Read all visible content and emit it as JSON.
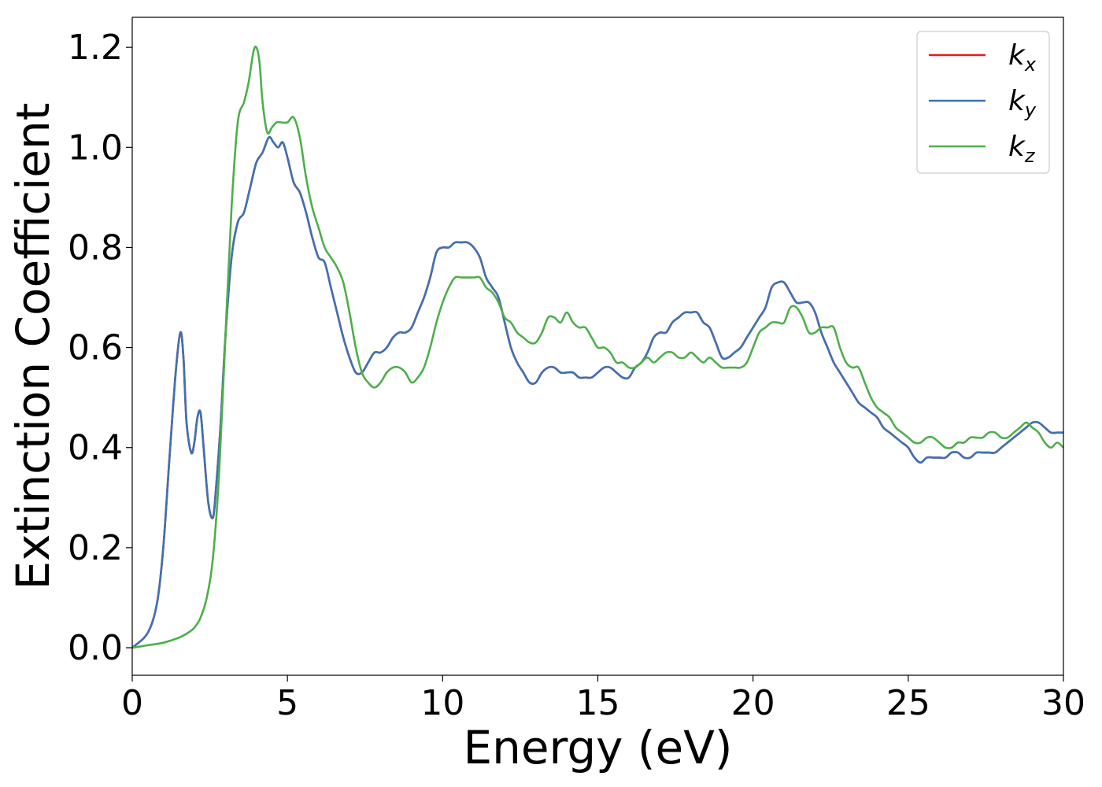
{
  "chart_data": {
    "type": "line",
    "xlabel": "Energy (eV)",
    "ylabel": "Extinction Coefficient",
    "xlim": [
      0,
      30
    ],
    "ylim": [
      -0.055,
      1.26
    ],
    "xticks": [
      0,
      5,
      10,
      15,
      20,
      25,
      30
    ],
    "xtick_labels": [
      "0",
      "5",
      "10",
      "15",
      "20",
      "25",
      "30"
    ],
    "yticks": [
      0.0,
      0.2,
      0.4,
      0.6,
      0.8,
      1.0,
      1.2
    ],
    "ytick_labels": [
      "0.0",
      "0.2",
      "0.4",
      "0.6",
      "0.8",
      "1.0",
      "1.2"
    ],
    "grid": false,
    "legend_position": "top-right",
    "series": [
      {
        "name": "k_x",
        "label_base": "k",
        "label_sub": "x",
        "color": "#e41a1c",
        "x": [
          0,
          0.5,
          0.8,
          1.0,
          1.2,
          1.4,
          1.55,
          1.65,
          1.75,
          1.9,
          2.0,
          2.1,
          2.2,
          2.3,
          2.45,
          2.6,
          2.7,
          2.85,
          3.0,
          3.2,
          3.4,
          3.6,
          3.8,
          4.0,
          4.2,
          4.4,
          4.55,
          4.7,
          4.85,
          5.0,
          5.2,
          5.4,
          5.6,
          5.8,
          6.0,
          6.2,
          6.4,
          6.6,
          6.8,
          7.0,
          7.2,
          7.4,
          7.6,
          7.8,
          8.0,
          8.2,
          8.4,
          8.6,
          8.8,
          9.0,
          9.2,
          9.4,
          9.6,
          9.8,
          10.0,
          10.2,
          10.4,
          10.6,
          10.8,
          11.0,
          11.2,
          11.4,
          11.6,
          11.8,
          12.0,
          12.2,
          12.4,
          12.6,
          12.8,
          13.0,
          13.2,
          13.4,
          13.6,
          13.8,
          14.0,
          14.2,
          14.4,
          14.6,
          14.8,
          15.0,
          15.2,
          15.4,
          15.6,
          15.8,
          16.0,
          16.2,
          16.4,
          16.6,
          16.8,
          17.0,
          17.2,
          17.4,
          17.6,
          17.8,
          18.0,
          18.2,
          18.4,
          18.6,
          18.8,
          19.0,
          19.2,
          19.4,
          19.6,
          19.8,
          20.0,
          20.2,
          20.4,
          20.6,
          20.8,
          21.0,
          21.2,
          21.4,
          21.6,
          21.8,
          22.0,
          22.2,
          22.4,
          22.6,
          22.8,
          23.0,
          23.2,
          23.4,
          23.6,
          23.8,
          24.0,
          24.2,
          24.4,
          24.6,
          24.8,
          25.0,
          25.2,
          25.4,
          25.6,
          25.8,
          26.0,
          26.2,
          26.4,
          26.6,
          26.8,
          27.0,
          27.2,
          27.4,
          27.6,
          27.8,
          28.0,
          28.2,
          28.4,
          28.6,
          28.8,
          29.0,
          29.2,
          29.4,
          29.6,
          29.8,
          30.0
        ],
        "y": [
          0.0,
          0.03,
          0.09,
          0.2,
          0.38,
          0.55,
          0.63,
          0.58,
          0.45,
          0.39,
          0.41,
          0.46,
          0.47,
          0.4,
          0.29,
          0.26,
          0.32,
          0.45,
          0.62,
          0.78,
          0.85,
          0.87,
          0.92,
          0.97,
          0.99,
          1.02,
          1.01,
          1.0,
          1.01,
          0.98,
          0.93,
          0.91,
          0.87,
          0.82,
          0.78,
          0.77,
          0.72,
          0.67,
          0.62,
          0.58,
          0.55,
          0.55,
          0.57,
          0.59,
          0.59,
          0.6,
          0.62,
          0.63,
          0.63,
          0.64,
          0.67,
          0.7,
          0.74,
          0.79,
          0.8,
          0.8,
          0.81,
          0.81,
          0.81,
          0.8,
          0.78,
          0.74,
          0.72,
          0.7,
          0.65,
          0.6,
          0.57,
          0.55,
          0.53,
          0.53,
          0.55,
          0.56,
          0.56,
          0.55,
          0.55,
          0.55,
          0.54,
          0.54,
          0.54,
          0.55,
          0.56,
          0.56,
          0.55,
          0.54,
          0.54,
          0.56,
          0.57,
          0.59,
          0.62,
          0.63,
          0.63,
          0.65,
          0.66,
          0.67,
          0.67,
          0.67,
          0.65,
          0.64,
          0.61,
          0.58,
          0.58,
          0.59,
          0.6,
          0.62,
          0.64,
          0.66,
          0.68,
          0.72,
          0.73,
          0.73,
          0.71,
          0.69,
          0.69,
          0.69,
          0.67,
          0.63,
          0.6,
          0.57,
          0.55,
          0.53,
          0.51,
          0.49,
          0.48,
          0.47,
          0.46,
          0.44,
          0.43,
          0.42,
          0.41,
          0.4,
          0.38,
          0.37,
          0.38,
          0.38,
          0.38,
          0.38,
          0.39,
          0.39,
          0.38,
          0.38,
          0.39,
          0.39,
          0.39,
          0.39,
          0.4,
          0.41,
          0.42,
          0.43,
          0.44,
          0.45,
          0.45,
          0.44,
          0.43,
          0.43,
          0.43
        ]
      },
      {
        "name": "k_y",
        "label_base": "k",
        "label_sub": "y",
        "color": "#3d72b4",
        "x": [
          0,
          0.5,
          0.8,
          1.0,
          1.2,
          1.4,
          1.55,
          1.65,
          1.75,
          1.9,
          2.0,
          2.1,
          2.2,
          2.3,
          2.45,
          2.6,
          2.7,
          2.85,
          3.0,
          3.2,
          3.4,
          3.6,
          3.8,
          4.0,
          4.2,
          4.4,
          4.55,
          4.7,
          4.85,
          5.0,
          5.2,
          5.4,
          5.6,
          5.8,
          6.0,
          6.2,
          6.4,
          6.6,
          6.8,
          7.0,
          7.2,
          7.4,
          7.6,
          7.8,
          8.0,
          8.2,
          8.4,
          8.6,
          8.8,
          9.0,
          9.2,
          9.4,
          9.6,
          9.8,
          10.0,
          10.2,
          10.4,
          10.6,
          10.8,
          11.0,
          11.2,
          11.4,
          11.6,
          11.8,
          12.0,
          12.2,
          12.4,
          12.6,
          12.8,
          13.0,
          13.2,
          13.4,
          13.6,
          13.8,
          14.0,
          14.2,
          14.4,
          14.6,
          14.8,
          15.0,
          15.2,
          15.4,
          15.6,
          15.8,
          16.0,
          16.2,
          16.4,
          16.6,
          16.8,
          17.0,
          17.2,
          17.4,
          17.6,
          17.8,
          18.0,
          18.2,
          18.4,
          18.6,
          18.8,
          19.0,
          19.2,
          19.4,
          19.6,
          19.8,
          20.0,
          20.2,
          20.4,
          20.6,
          20.8,
          21.0,
          21.2,
          21.4,
          21.6,
          21.8,
          22.0,
          22.2,
          22.4,
          22.6,
          22.8,
          23.0,
          23.2,
          23.4,
          23.6,
          23.8,
          24.0,
          24.2,
          24.4,
          24.6,
          24.8,
          25.0,
          25.2,
          25.4,
          25.6,
          25.8,
          26.0,
          26.2,
          26.4,
          26.6,
          26.8,
          27.0,
          27.2,
          27.4,
          27.6,
          27.8,
          28.0,
          28.2,
          28.4,
          28.6,
          28.8,
          29.0,
          29.2,
          29.4,
          29.6,
          29.8,
          30.0
        ],
        "y": [
          0.0,
          0.03,
          0.09,
          0.2,
          0.38,
          0.55,
          0.63,
          0.58,
          0.45,
          0.39,
          0.41,
          0.46,
          0.47,
          0.4,
          0.29,
          0.26,
          0.32,
          0.45,
          0.62,
          0.78,
          0.85,
          0.87,
          0.92,
          0.97,
          0.99,
          1.02,
          1.01,
          1.0,
          1.01,
          0.98,
          0.93,
          0.91,
          0.87,
          0.82,
          0.78,
          0.77,
          0.72,
          0.67,
          0.62,
          0.58,
          0.55,
          0.55,
          0.57,
          0.59,
          0.59,
          0.6,
          0.62,
          0.63,
          0.63,
          0.64,
          0.67,
          0.7,
          0.74,
          0.79,
          0.8,
          0.8,
          0.81,
          0.81,
          0.81,
          0.8,
          0.78,
          0.74,
          0.72,
          0.7,
          0.65,
          0.6,
          0.57,
          0.55,
          0.53,
          0.53,
          0.55,
          0.56,
          0.56,
          0.55,
          0.55,
          0.55,
          0.54,
          0.54,
          0.54,
          0.55,
          0.56,
          0.56,
          0.55,
          0.54,
          0.54,
          0.56,
          0.57,
          0.59,
          0.62,
          0.63,
          0.63,
          0.65,
          0.66,
          0.67,
          0.67,
          0.67,
          0.65,
          0.64,
          0.61,
          0.58,
          0.58,
          0.59,
          0.6,
          0.62,
          0.64,
          0.66,
          0.68,
          0.72,
          0.73,
          0.73,
          0.71,
          0.69,
          0.69,
          0.69,
          0.67,
          0.63,
          0.6,
          0.57,
          0.55,
          0.53,
          0.51,
          0.49,
          0.48,
          0.47,
          0.46,
          0.44,
          0.43,
          0.42,
          0.41,
          0.4,
          0.38,
          0.37,
          0.38,
          0.38,
          0.38,
          0.38,
          0.39,
          0.39,
          0.38,
          0.38,
          0.39,
          0.39,
          0.39,
          0.39,
          0.4,
          0.41,
          0.42,
          0.43,
          0.44,
          0.45,
          0.45,
          0.44,
          0.43,
          0.43,
          0.43
        ]
      },
      {
        "name": "k_z",
        "label_base": "k",
        "label_sub": "z",
        "color": "#4daf4a",
        "x": [
          0,
          0.5,
          1.0,
          1.5,
          1.8,
          2.0,
          2.2,
          2.4,
          2.6,
          2.8,
          3.0,
          3.2,
          3.4,
          3.6,
          3.75,
          3.9,
          4.0,
          4.1,
          4.2,
          4.35,
          4.5,
          4.65,
          4.8,
          5.0,
          5.2,
          5.4,
          5.6,
          5.8,
          6.0,
          6.2,
          6.4,
          6.6,
          6.8,
          7.0,
          7.2,
          7.4,
          7.6,
          7.8,
          8.0,
          8.2,
          8.4,
          8.6,
          8.8,
          9.0,
          9.2,
          9.4,
          9.6,
          9.8,
          10.0,
          10.2,
          10.4,
          10.6,
          10.8,
          11.0,
          11.2,
          11.4,
          11.6,
          11.8,
          12.0,
          12.2,
          12.4,
          12.6,
          12.8,
          13.0,
          13.2,
          13.4,
          13.6,
          13.8,
          14.0,
          14.2,
          14.4,
          14.6,
          14.8,
          15.0,
          15.2,
          15.4,
          15.6,
          15.8,
          16.0,
          16.2,
          16.4,
          16.6,
          16.8,
          17.0,
          17.2,
          17.4,
          17.6,
          17.8,
          18.0,
          18.2,
          18.4,
          18.6,
          18.8,
          19.0,
          19.2,
          19.4,
          19.6,
          19.8,
          20.0,
          20.2,
          20.4,
          20.6,
          20.8,
          21.0,
          21.2,
          21.4,
          21.6,
          21.8,
          22.0,
          22.2,
          22.4,
          22.6,
          22.8,
          23.0,
          23.2,
          23.4,
          23.6,
          23.8,
          24.0,
          24.2,
          24.4,
          24.6,
          24.8,
          25.0,
          25.2,
          25.4,
          25.6,
          25.8,
          26.0,
          26.2,
          26.4,
          26.6,
          26.8,
          27.0,
          27.2,
          27.4,
          27.6,
          27.8,
          28.0,
          28.2,
          28.4,
          28.6,
          28.8,
          29.0,
          29.2,
          29.4,
          29.6,
          29.8,
          30.0
        ],
        "y": [
          0.0,
          0.005,
          0.01,
          0.02,
          0.03,
          0.04,
          0.06,
          0.1,
          0.18,
          0.35,
          0.62,
          0.88,
          1.05,
          1.09,
          1.13,
          1.19,
          1.2,
          1.17,
          1.09,
          1.03,
          1.04,
          1.05,
          1.05,
          1.05,
          1.06,
          1.02,
          0.94,
          0.88,
          0.84,
          0.8,
          0.78,
          0.76,
          0.73,
          0.67,
          0.6,
          0.55,
          0.53,
          0.52,
          0.53,
          0.55,
          0.56,
          0.56,
          0.55,
          0.53,
          0.54,
          0.56,
          0.6,
          0.65,
          0.69,
          0.72,
          0.74,
          0.74,
          0.74,
          0.74,
          0.74,
          0.72,
          0.71,
          0.69,
          0.66,
          0.65,
          0.63,
          0.62,
          0.61,
          0.61,
          0.63,
          0.66,
          0.66,
          0.65,
          0.67,
          0.65,
          0.64,
          0.64,
          0.62,
          0.6,
          0.6,
          0.59,
          0.57,
          0.57,
          0.56,
          0.56,
          0.57,
          0.58,
          0.57,
          0.58,
          0.59,
          0.59,
          0.58,
          0.58,
          0.59,
          0.58,
          0.57,
          0.58,
          0.57,
          0.56,
          0.56,
          0.56,
          0.56,
          0.57,
          0.6,
          0.63,
          0.64,
          0.65,
          0.65,
          0.65,
          0.68,
          0.68,
          0.66,
          0.63,
          0.63,
          0.64,
          0.64,
          0.64,
          0.6,
          0.57,
          0.56,
          0.56,
          0.53,
          0.5,
          0.48,
          0.47,
          0.46,
          0.44,
          0.43,
          0.42,
          0.41,
          0.41,
          0.42,
          0.42,
          0.41,
          0.4,
          0.4,
          0.41,
          0.41,
          0.42,
          0.42,
          0.42,
          0.43,
          0.43,
          0.42,
          0.42,
          0.43,
          0.44,
          0.45,
          0.44,
          0.43,
          0.41,
          0.4,
          0.41,
          0.4
        ]
      }
    ]
  }
}
